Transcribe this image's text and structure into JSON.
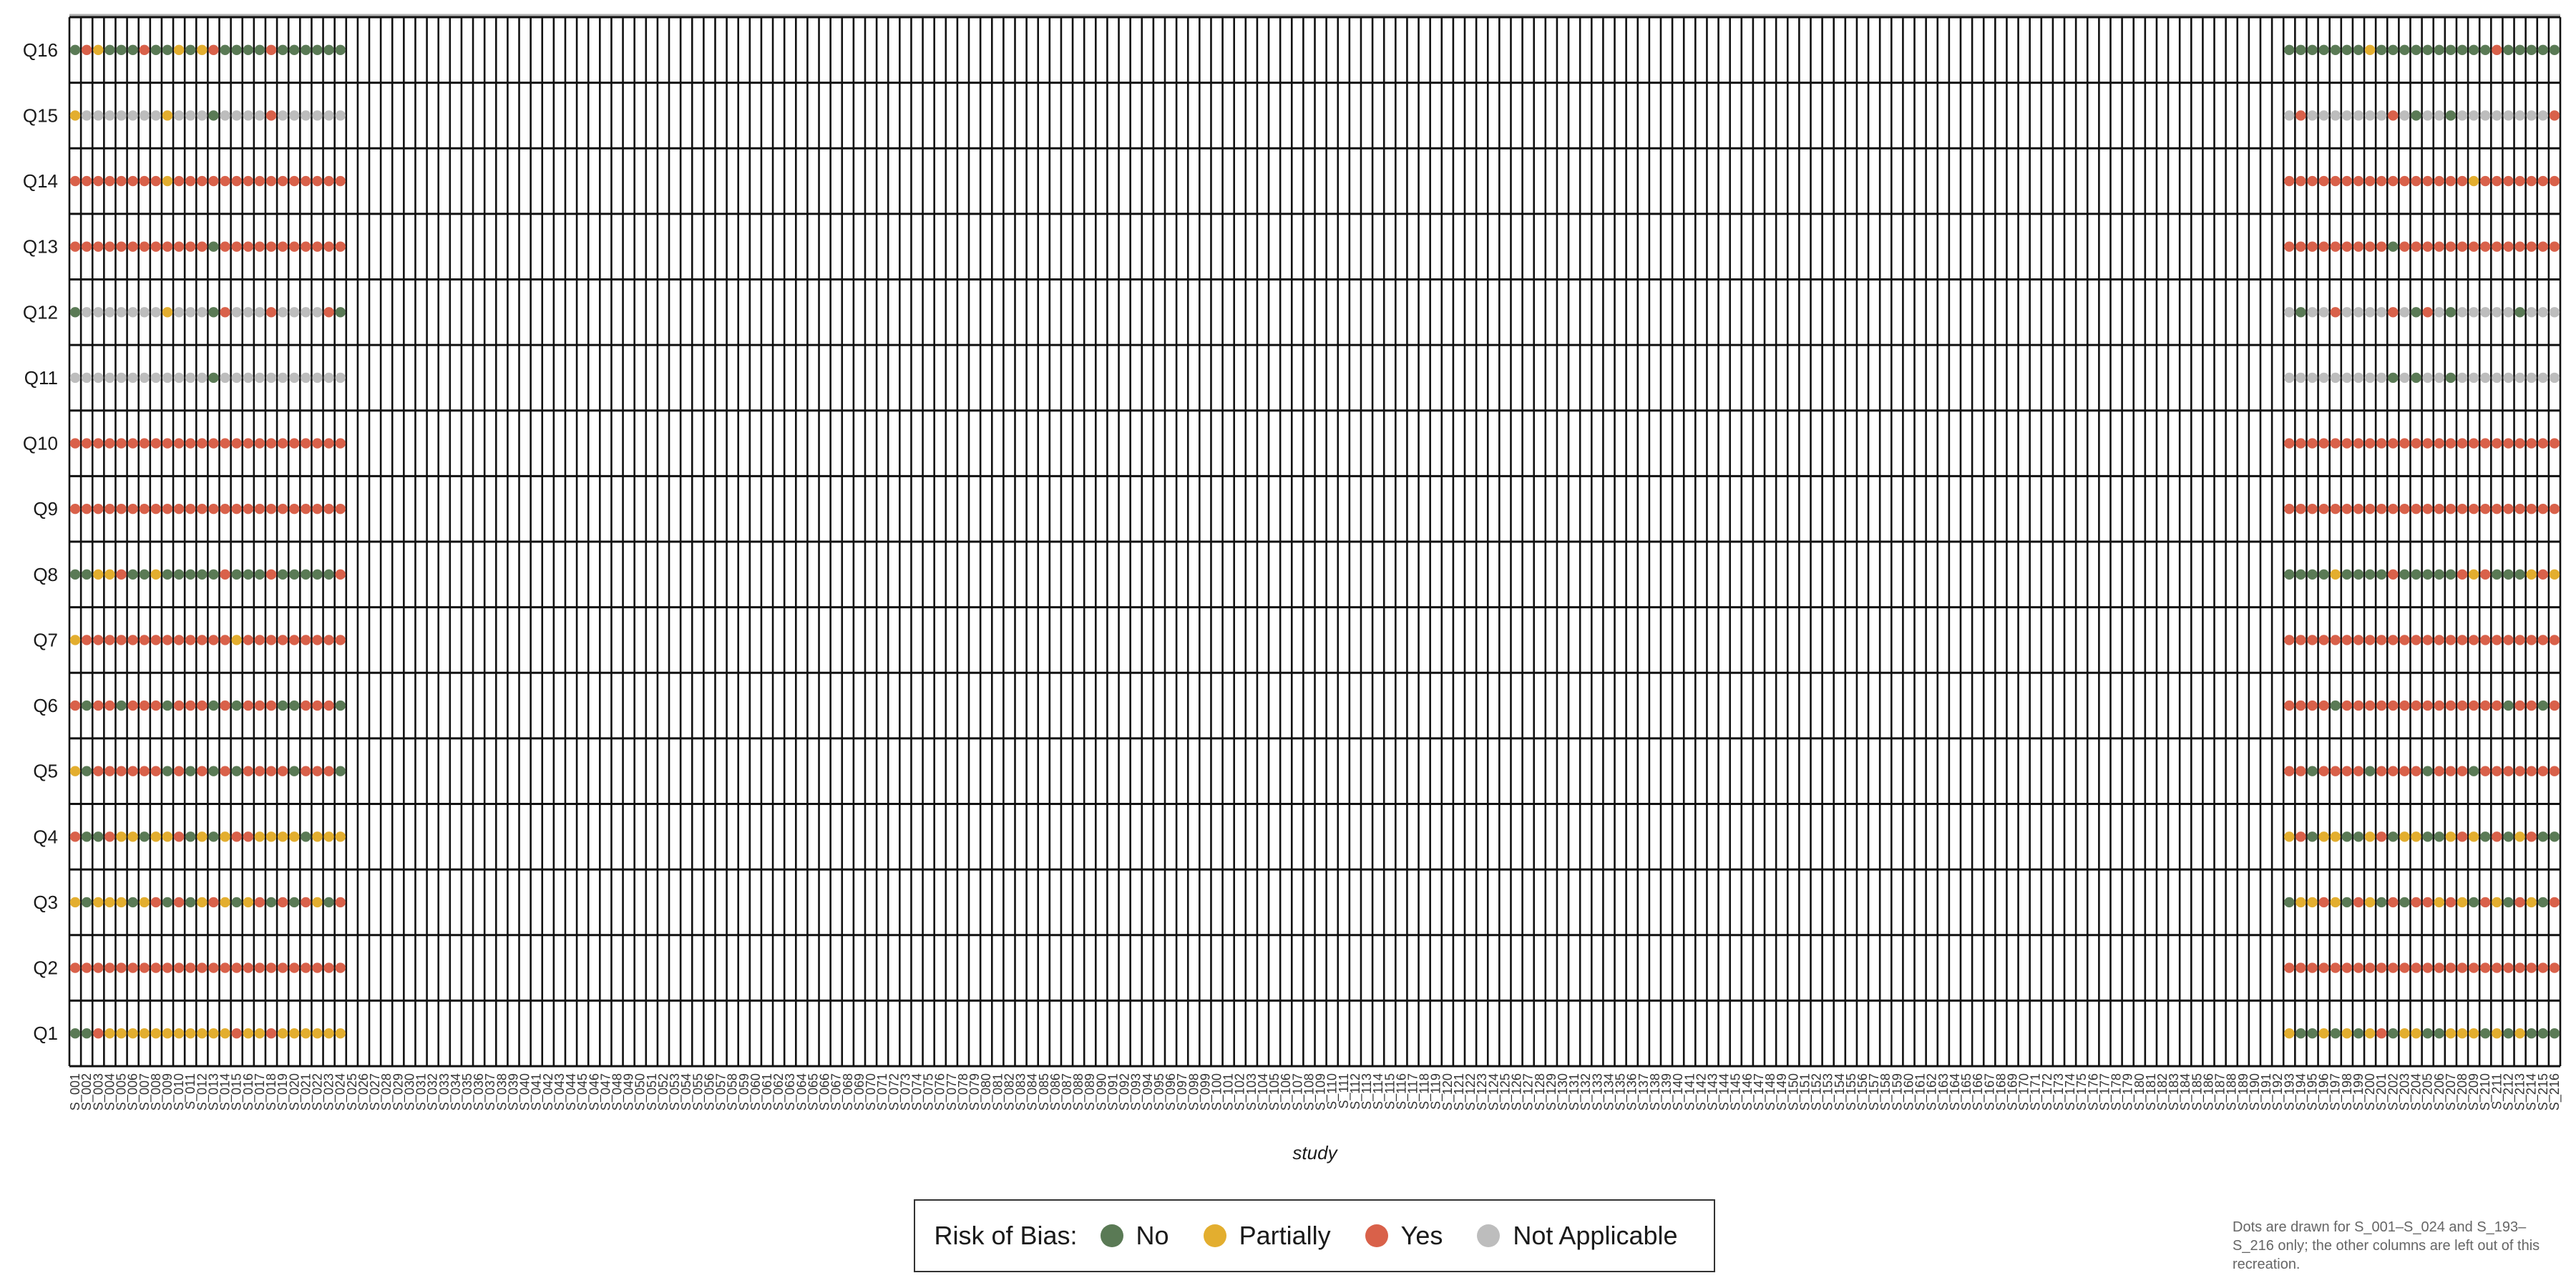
{
  "chart_data": {
    "type": "scatter",
    "xlabel": "study",
    "questions": [
      "Q1",
      "Q2",
      "Q3",
      "Q4",
      "Q5",
      "Q6",
      "Q7",
      "Q8",
      "Q9",
      "Q10",
      "Q11",
      "Q12",
      "Q13",
      "Q14",
      "Q15",
      "Q16"
    ],
    "study_total": 216,
    "legend": {
      "title": "Risk of Bias:",
      "items": [
        {
          "key": "N",
          "label": "No",
          "color": "#5a7a55"
        },
        {
          "key": "P",
          "label": "Partially",
          "color": "#e3ae2f"
        },
        {
          "key": "Y",
          "label": "Yes",
          "color": "#d9614a"
        },
        {
          "key": "A",
          "label": "Not Applicable",
          "color": "#bdbdbd"
        }
      ]
    },
    "columns": [
      {
        "study": "S_001",
        "ratings": "NYPYPYPNYYANYYPN"
      },
      {
        "study": "S_002",
        "ratings": "NYNNNNYNYYAAYYAY"
      },
      {
        "study": "S_003",
        "ratings": "YYPNYYYPYYAAYYAP"
      },
      {
        "study": "S_004",
        "ratings": "PYPYYYYPYYAAYYAN"
      },
      {
        "study": "S_005",
        "ratings": "PYPPYNYYYYAAYYAN"
      },
      {
        "study": "S_006",
        "ratings": "PYNPYYYNYYAAYYAN"
      },
      {
        "study": "S_007",
        "ratings": "PYPNYYYNYYAAYYAY"
      },
      {
        "study": "S_008",
        "ratings": "PYYPYYYPYYAAYYAN"
      },
      {
        "study": "S_009",
        "ratings": "PYNPNNYNYYAPYPPN"
      },
      {
        "study": "S_010",
        "ratings": "PYYYYYYNYYAAYYAP"
      },
      {
        "study": "S_011",
        "ratings": "PYNNNYYNYYAAYYAN"
      },
      {
        "study": "S_012",
        "ratings": "PYPPYYYNYYAAYYAP"
      },
      {
        "study": "S_013",
        "ratings": "PYYNNNYNYYNNNYNY"
      },
      {
        "study": "S_014",
        "ratings": "PYPPYYYYYYAYYYAN"
      },
      {
        "study": "S_015",
        "ratings": "YYNYNNPNYYAAYYAN"
      },
      {
        "study": "S_016",
        "ratings": "PYPYYYYNYYAAYYAN"
      },
      {
        "study": "S_017",
        "ratings": "PYYPYYYNYYAAYYAN"
      },
      {
        "study": "S_018",
        "ratings": "YYNPYYYYYYAYYYYY"
      },
      {
        "study": "S_019",
        "ratings": "PYYPYNYNYYAAYYAN"
      },
      {
        "study": "S_020",
        "ratings": "PYNPNNYNYYAAYYAN"
      },
      {
        "study": "S_021",
        "ratings": "PYYNYYYNYYAAYYAN"
      },
      {
        "study": "S_022",
        "ratings": "PYPPYYYNYYAAYYAN"
      },
      {
        "study": "S_023",
        "ratings": "PYNPYYYNYYAYYYAN"
      },
      {
        "study": "S_024",
        "ratings": "PYYPNNYYYYANYYAN"
      },
      {
        "study": "S_193",
        "ratings": "PYNPYYYNYYAAYYAN"
      },
      {
        "study": "S_194",
        "ratings": "NYPYYYYNYYANYYYN"
      },
      {
        "study": "S_195",
        "ratings": "NYPNNYYNYYAAYYAN"
      },
      {
        "study": "S_196",
        "ratings": "PYYPYYYNYYAAYYAN"
      },
      {
        "study": "S_197",
        "ratings": "NYPPYNYPYYAYYYAN"
      },
      {
        "study": "S_198",
        "ratings": "PYNNYYYNYYAAYYAN"
      },
      {
        "study": "S_199",
        "ratings": "NYYNYYYNYYAAYYAN"
      },
      {
        "study": "S_200",
        "ratings": "PYPPNYYNYYAAYYAP"
      },
      {
        "study": "S_201",
        "ratings": "YYNYYYYNYYAAYYAN"
      },
      {
        "study": "S_202",
        "ratings": "NYYNYYYYYYNYNYYN"
      },
      {
        "study": "S_203",
        "ratings": "PYNPYYYNYYAAYYAN"
      },
      {
        "study": "S_204",
        "ratings": "PYYPYYYNYYNNYYNN"
      },
      {
        "study": "S_205",
        "ratings": "NYYNNYYNYYAYYYAN"
      },
      {
        "study": "S_206",
        "ratings": "NYPNYYYNYYAAYYAN"
      },
      {
        "study": "S_207",
        "ratings": "PYYPYYYNYYNNYYNN"
      },
      {
        "study": "S_208",
        "ratings": "PYPYYYYYYYAAYYAN"
      },
      {
        "study": "S_209",
        "ratings": "PYNPNYYPYYAAYPAN"
      },
      {
        "study": "S_210",
        "ratings": "NYYNYYYYYYAAYYAN"
      },
      {
        "study": "S_211",
        "ratings": "PYPYYYYNYYAAYYAY"
      },
      {
        "study": "S_212",
        "ratings": "NYNNYNYNYYAAYYAN"
      },
      {
        "study": "S_213",
        "ratings": "PYYPYYYNYYANYYAN"
      },
      {
        "study": "S_214",
        "ratings": "NYPYYYYPYYAAYYAN"
      },
      {
        "study": "S_215",
        "ratings": "NYNNYNYYYYAAYYAN"
      },
      {
        "study": "S_216",
        "ratings": "NYYNYYYPYYAAYYYN"
      }
    ]
  }
}
